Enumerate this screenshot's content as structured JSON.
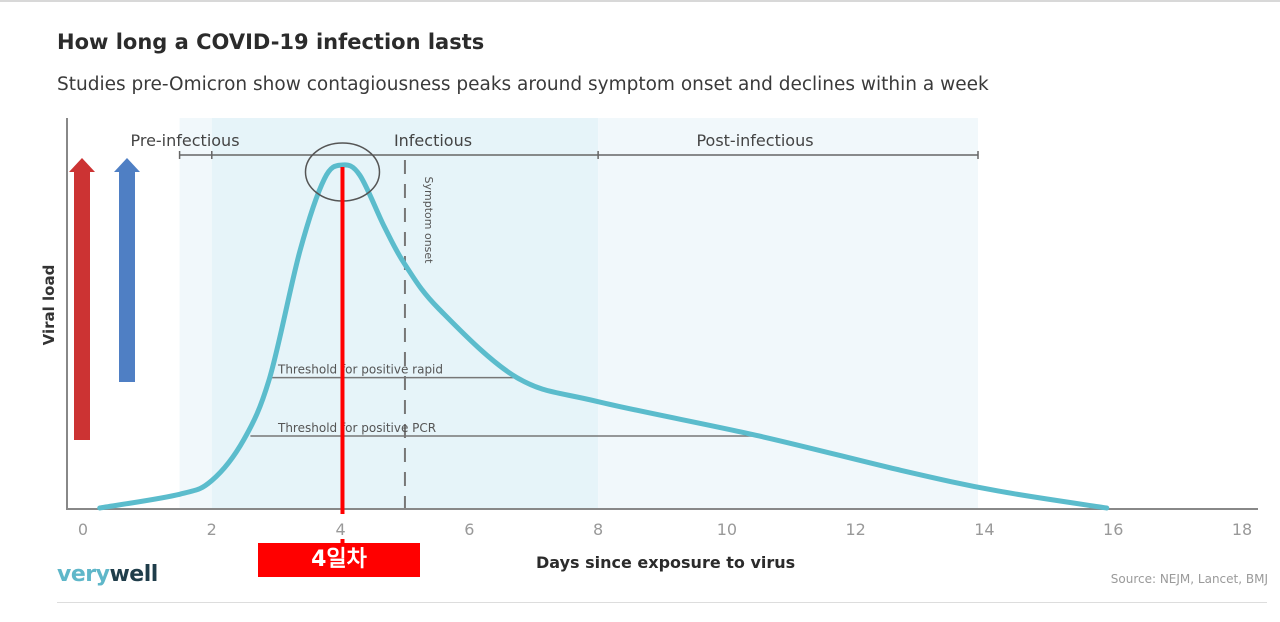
{
  "chart_data": {
    "type": "line",
    "title": "How long a COVID-19 infection lasts",
    "subtitle": "Studies pre-Omicron show contagiousness peaks around symptom onset and declines within a week",
    "xlabel": "Days since exposure to virus",
    "ylabel": "Viral load",
    "xlim": [
      0,
      18
    ],
    "ylim": [
      0,
      100
    ],
    "x_ticks": [
      "0",
      "2",
      "4",
      "6",
      "8",
      "10",
      "12",
      "14",
      "16",
      "18"
    ],
    "grid": false,
    "series": [
      {
        "name": "Viral load",
        "color": "#5bbccc",
        "x": [
          0.26,
          1.5,
          2,
          2.5,
          2.9,
          3.37,
          3.75,
          4.03,
          4.3,
          4.68,
          5,
          5.53,
          6.74,
          8,
          10.5,
          12.7,
          14.2,
          15.9
        ],
        "y": [
          0,
          4,
          8,
          20,
          38,
          75,
          96,
          100,
          97,
          82,
          71,
          58,
          38,
          31,
          21,
          11,
          5,
          0
        ]
      }
    ],
    "phases": [
      {
        "label": "Pre-infectious",
        "start": 1.5,
        "end": 2
      },
      {
        "label": "Infectious",
        "start": 2,
        "end": 8
      },
      {
        "label": "Post-infectious",
        "start": 8,
        "end": 13.9
      }
    ],
    "thresholds": [
      {
        "label": "Threshold for positive rapid",
        "value": 38,
        "start": 2.9,
        "end": 6.74
      },
      {
        "label": "Threshold for positive PCR",
        "value": 21,
        "start": 2.6,
        "end": 10.5
      }
    ],
    "symptom_onset": {
      "label": "Symptom onset",
      "day": 5
    },
    "annotation": {
      "label": "4일차",
      "day": 4.03,
      "color": "#ff0000"
    }
  },
  "brand": {
    "part1": "very",
    "part2": "well"
  },
  "source": "Source:   NEJM, Lancet, BMJ"
}
